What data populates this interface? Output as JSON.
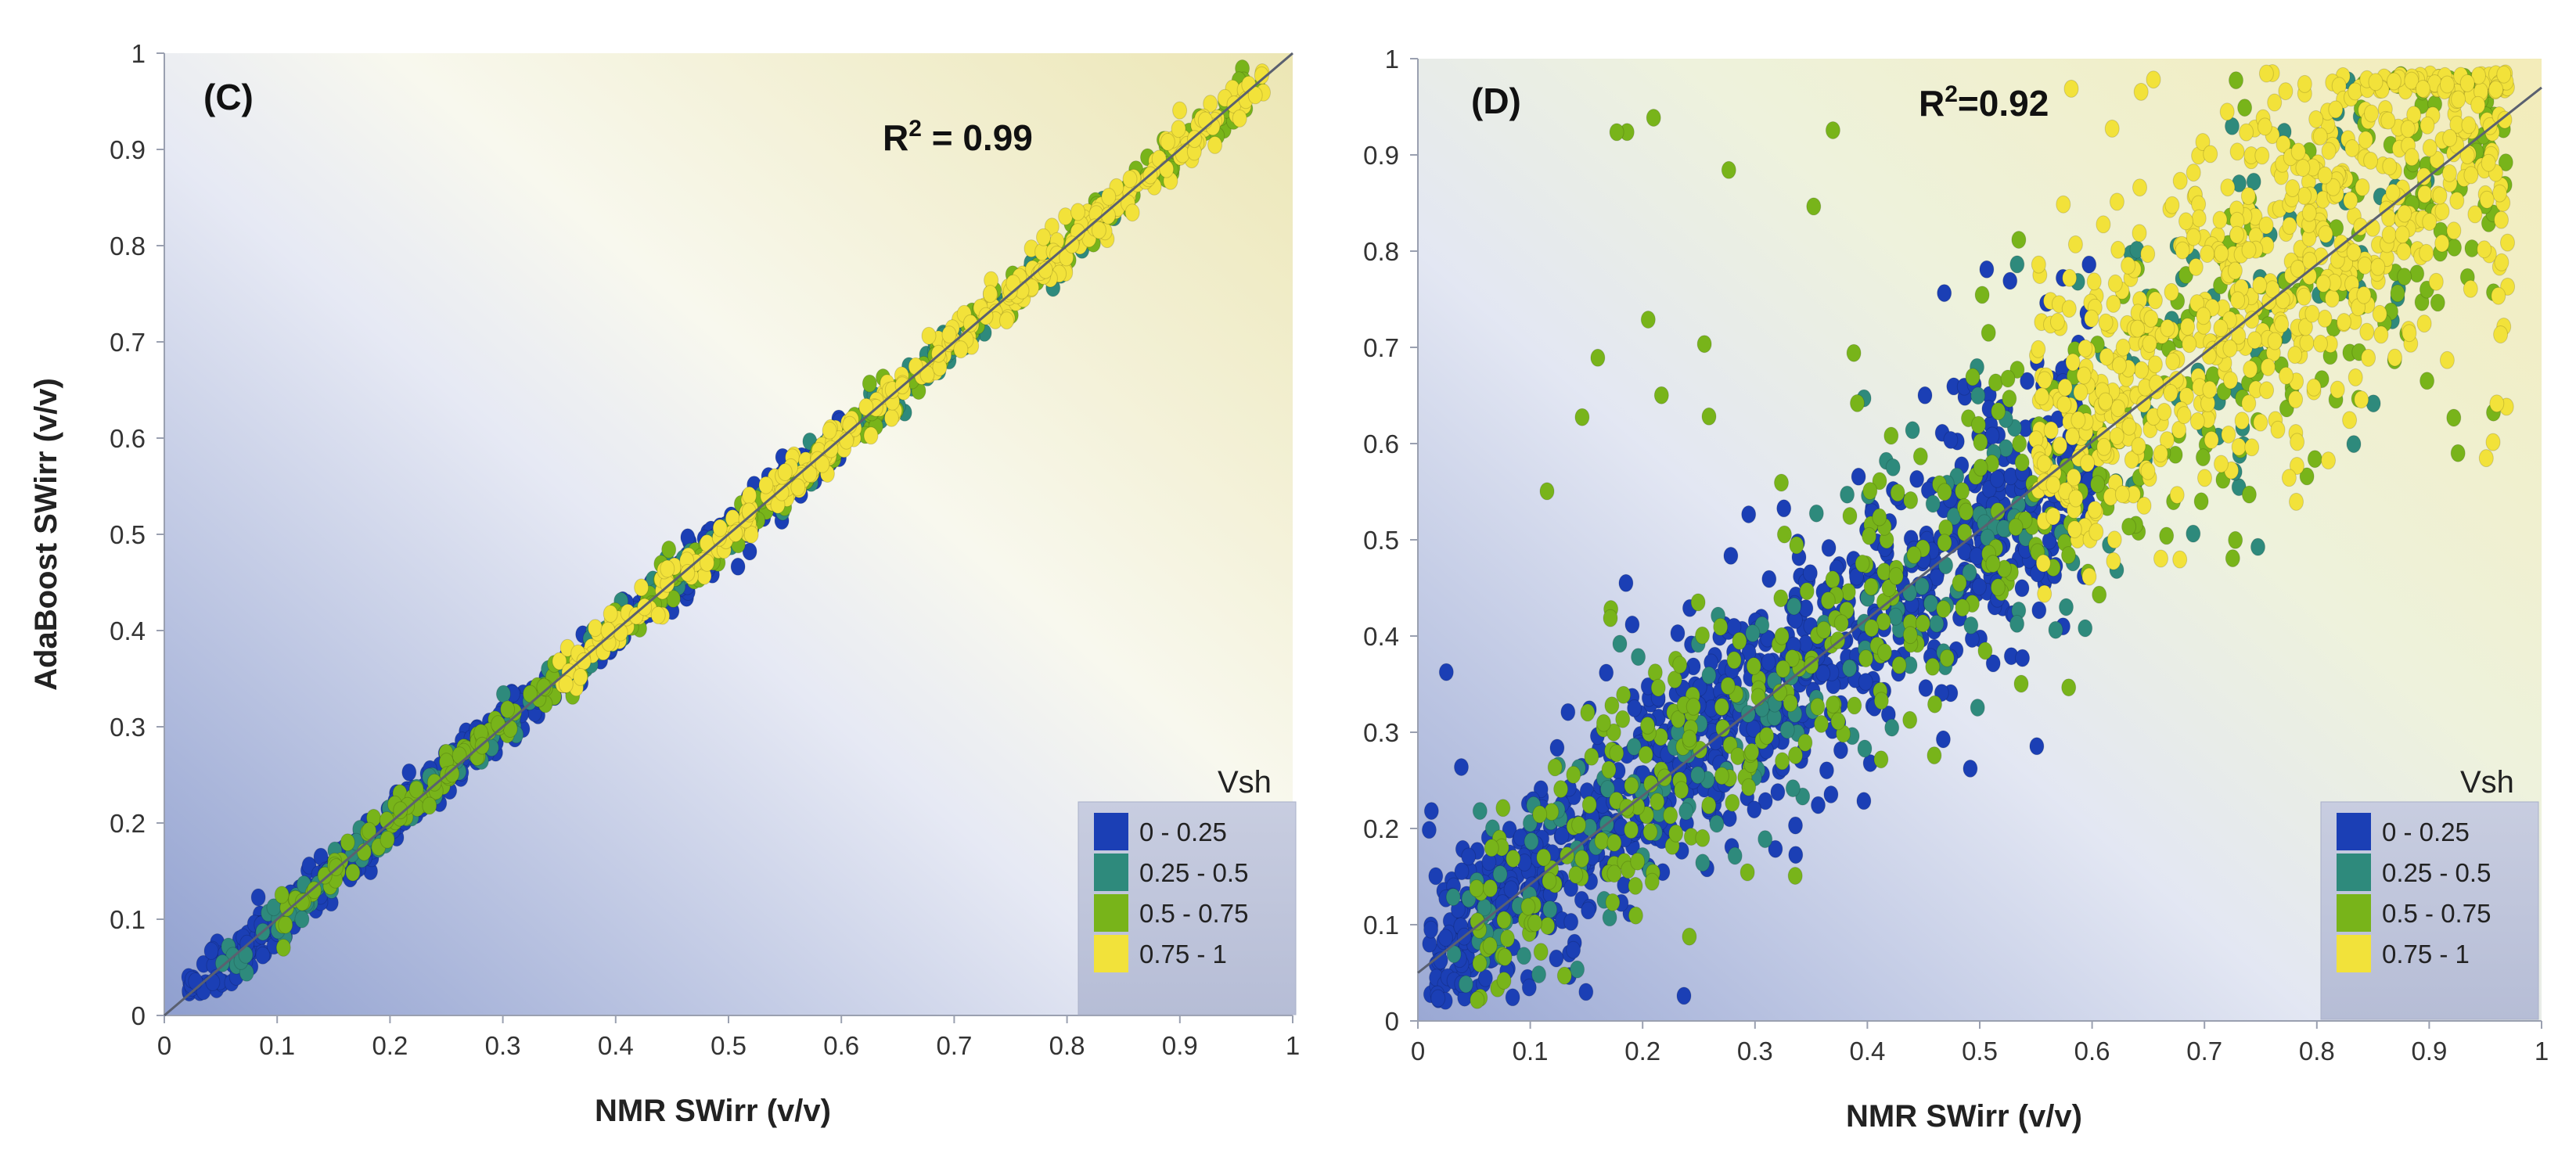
{
  "chart_data": [
    {
      "type": "scatter",
      "panel_label": "(C)",
      "xlabel": "NMR SWirr (v/v)",
      "ylabel": "AdaBoost SWirr (v/v)",
      "xlim": [
        0,
        1
      ],
      "ylim": [
        0,
        1
      ],
      "xticks": [
        "0",
        "0.1",
        "0.2",
        "0.3",
        "0.4",
        "0.5",
        "0.6",
        "0.7",
        "0.8",
        "0.9",
        "1"
      ],
      "yticks": [
        "0",
        "0.1",
        "0.2",
        "0.3",
        "0.4",
        "0.5",
        "0.6",
        "0.7",
        "0.8",
        "0.9",
        "1"
      ],
      "annotation": {
        "prefix": "R",
        "sup": "2",
        "text": " = 0.99"
      },
      "fit_line": {
        "slope": 1.0,
        "intercept": 0.0
      },
      "legend": {
        "title": "Vsh",
        "entries": [
          {
            "label": "0 - 0.25",
            "color": "#1b3fb5"
          },
          {
            "label": "0.25 - 0.5",
            "color": "#2e8a7c"
          },
          {
            "label": "0.5 - 0.75",
            "color": "#78b41a"
          },
          {
            "label": "0.75 - 1",
            "color": "#f2e23a"
          }
        ]
      },
      "series_note": "Points cluster tightly along the 1:1 line from about 0.02 to 0.98; low values mostly Vsh 0-0.25, high values mostly Vsh 0.75-1",
      "series": [
        {
          "name": "0 - 0.25",
          "count": 620,
          "x_range": [
            0.02,
            0.6
          ],
          "spread": 0.012,
          "y_model": "x"
        },
        {
          "name": "0.25 - 0.5",
          "count": 260,
          "x_range": [
            0.05,
            0.85
          ],
          "spread": 0.012,
          "y_model": "x"
        },
        {
          "name": "0.5 - 0.75",
          "count": 300,
          "x_range": [
            0.1,
            0.97
          ],
          "spread": 0.012,
          "y_model": "x"
        },
        {
          "name": "0.75 - 1",
          "count": 340,
          "x_range": [
            0.35,
            0.98
          ],
          "spread": 0.012,
          "y_model": "x"
        }
      ]
    },
    {
      "type": "scatter",
      "panel_label": "(D)",
      "xlabel": "NMR SWirr (v/v)",
      "ylabel": "",
      "xlim": [
        0,
        1
      ],
      "ylim": [
        0,
        1
      ],
      "xticks": [
        "0",
        "0.1",
        "0.2",
        "0.3",
        "0.4",
        "0.5",
        "0.6",
        "0.7",
        "0.8",
        "0.9",
        "1"
      ],
      "yticks": [
        "0",
        "0.1",
        "0.2",
        "0.3",
        "0.4",
        "0.5",
        "0.6",
        "0.7",
        "0.8",
        "0.9",
        "1"
      ],
      "annotation": {
        "prefix": "R",
        "sup": "2",
        "text": "=0.92"
      },
      "fit_line": {
        "slope": 0.92,
        "intercept": 0.05
      },
      "legend": {
        "title": "Vsh",
        "entries": [
          {
            "label": "0 - 0.25",
            "color": "#1b3fb5"
          },
          {
            "label": "0.25 - 0.5",
            "color": "#2e8a7c"
          },
          {
            "label": "0.5 - 0.75",
            "color": "#78b41a"
          },
          {
            "label": "0.75 - 1",
            "color": "#f2e23a"
          }
        ]
      },
      "series_note": "Wide scatter around the fit line; Vsh 0-0.25 concentrated at 0.02-0.45, Vsh 0.75-1 concentrated at 0.6-0.97 with y 0.7-0.97",
      "series": [
        {
          "name": "0 - 0.25",
          "count": 950,
          "x_range": [
            0.01,
            0.6
          ],
          "spread": 0.06,
          "y_model": "x"
        },
        {
          "name": "0.25 - 0.5",
          "count": 260,
          "x_range": [
            0.03,
            0.9
          ],
          "spread": 0.08,
          "y_model": "x"
        },
        {
          "name": "0.5 - 0.75",
          "count": 520,
          "x_range": [
            0.05,
            0.97
          ],
          "spread": 0.08,
          "y_model": "x"
        },
        {
          "name": "0.75 - 1",
          "count": 700,
          "x_range": [
            0.55,
            0.97
          ],
          "spread": 0.07,
          "y_model": "x"
        }
      ]
    }
  ]
}
